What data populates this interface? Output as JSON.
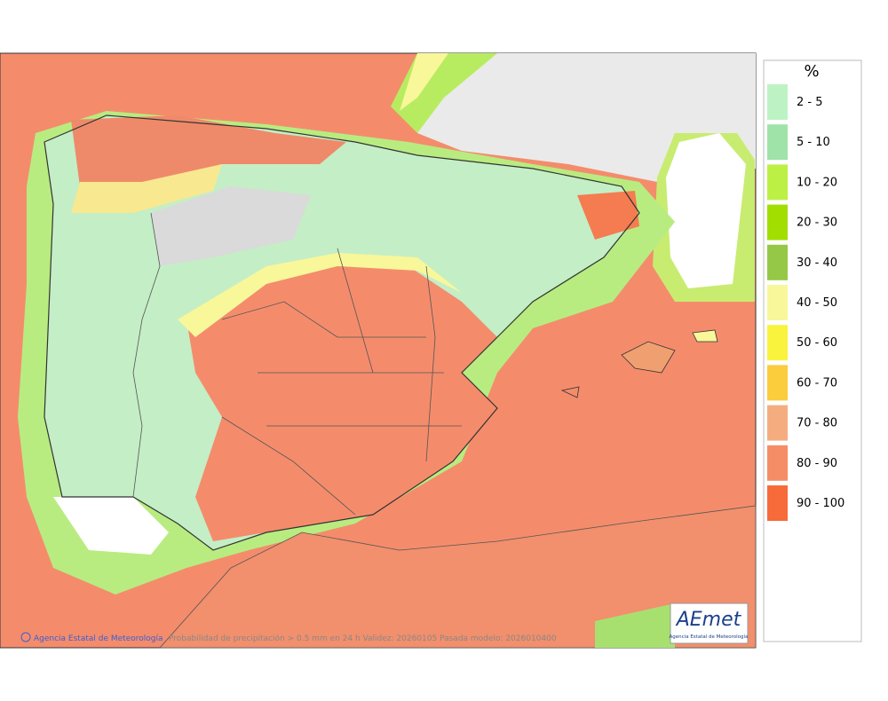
{
  "legend": {
    "title": "%",
    "items": [
      {
        "label": "2 - 5",
        "color": "#bdf3c4"
      },
      {
        "label": "5 - 10",
        "color": "#9fe3a8"
      },
      {
        "label": "10 - 20",
        "color": "#bdf044"
      },
      {
        "label": "20 - 30",
        "color": "#a2de00"
      },
      {
        "label": "30 - 40",
        "color": "#94c846"
      },
      {
        "label": "40 - 50",
        "color": "#f8f79a"
      },
      {
        "label": "50 - 60",
        "color": "#f9f33e"
      },
      {
        "label": "60 - 70",
        "color": "#fbcc3c"
      },
      {
        "label": "70 - 80",
        "color": "#f5ad80"
      },
      {
        "label": "80 - 90",
        "color": "#f58d66"
      },
      {
        "label": "90 - 100",
        "color": "#f76a3a"
      }
    ]
  },
  "footer": {
    "agency": "Agencia Estatal de Meteorología",
    "caption": "Probabilidad de precipitación > 0.5 mm en 24 h Validez: 20260105 Pasada modelo: 2026010400"
  },
  "logo": {
    "name": "AEmet",
    "subtitle": "Agencia Estatal de Meteorología"
  }
}
